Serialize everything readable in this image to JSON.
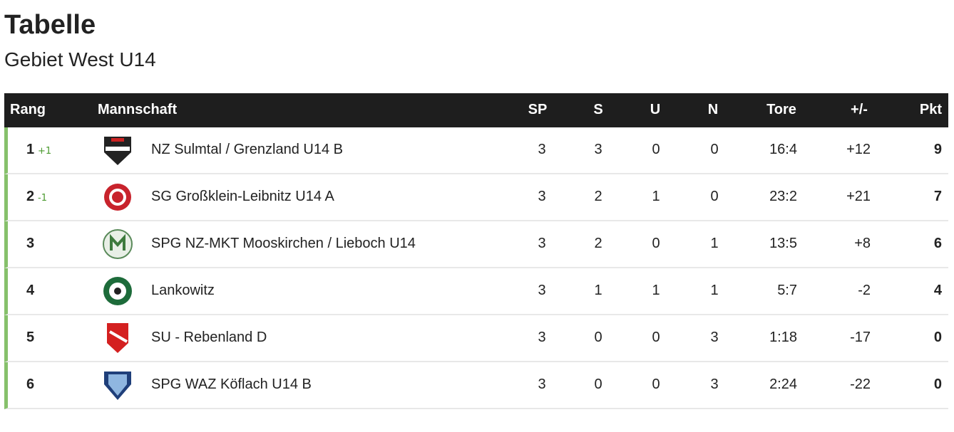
{
  "header": {
    "title": "Tabelle",
    "subtitle": "Gebiet West U14"
  },
  "table": {
    "columns": [
      "Rang",
      "Mannschaft",
      "SP",
      "S",
      "U",
      "N",
      "Tore",
      "+/-",
      "Pkt"
    ],
    "rows": [
      {
        "rank": "1",
        "change": "+1",
        "team": "NZ Sulmtal / Grenzland U14 B",
        "cells": [
          "3",
          "3",
          "0",
          "0",
          "16:4",
          "+12",
          "9"
        ]
      },
      {
        "rank": "2",
        "change": "-1",
        "team": "SG Großklein-Leibnitz U14 A",
        "cells": [
          "3",
          "2",
          "1",
          "0",
          "23:2",
          "+21",
          "7"
        ]
      },
      {
        "rank": "3",
        "team": "SPG NZ-MKT Mooskirchen / Lieboch U14",
        "cells": [
          "3",
          "2",
          "0",
          "1",
          "13:5",
          "+8",
          "6"
        ]
      },
      {
        "rank": "4",
        "team": "Lankowitz",
        "cells": [
          "3",
          "1",
          "1",
          "1",
          "5:7",
          "-2",
          "4"
        ]
      },
      {
        "rank": "5",
        "team": "SU - Rebenland D",
        "cells": [
          "3",
          "0",
          "0",
          "3",
          "1:18",
          "-17",
          "0"
        ]
      },
      {
        "rank": "6",
        "team": "SPG WAZ Köflach U14 B",
        "cells": [
          "3",
          "0",
          "0",
          "3",
          "2:24",
          "-22",
          "0"
        ]
      }
    ]
  }
}
